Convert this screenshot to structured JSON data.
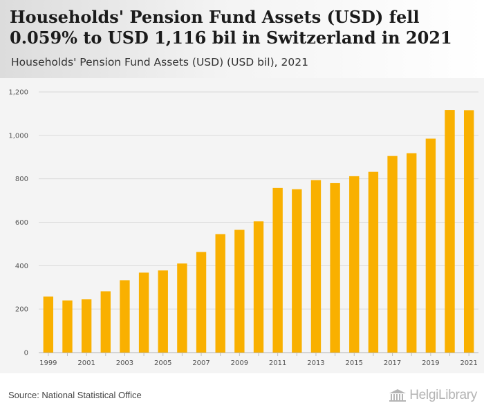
{
  "header": {
    "title": "Households' Pension Fund Assets (USD) fell 0.059% to USD 1,116 bil in Switzerland in 2021",
    "subtitle": "Households' Pension Fund Assets (USD) (USD bil), 2021"
  },
  "footer": {
    "source": "Source: National Statistical Office",
    "logo_text": "HelgiLibrary",
    "logo_icon": "library-building-icon"
  },
  "colors": {
    "bar": "#f9b000",
    "grid": "#d9d9d9",
    "plot_bg": "#f4f4f4"
  },
  "chart_data": {
    "type": "bar",
    "title": "Households' Pension Fund Assets (USD) fell 0.059% to USD 1,116 bil in Switzerland in 2021",
    "subtitle": "Households' Pension Fund Assets (USD) (USD bil), 2021",
    "xlabel": "",
    "ylabel": "",
    "ylim": [
      0,
      1200
    ],
    "yticks": [
      0,
      200,
      400,
      600,
      800,
      1000,
      1200
    ],
    "ytick_labels": [
      "0",
      "200",
      "400",
      "600",
      "800",
      "1,000",
      "1,200"
    ],
    "grid": true,
    "categories": [
      "1999",
      "2000",
      "2001",
      "2002",
      "2003",
      "2004",
      "2005",
      "2006",
      "2007",
      "2008",
      "2009",
      "2010",
      "2011",
      "2012",
      "2013",
      "2014",
      "2015",
      "2016",
      "2017",
      "2018",
      "2019",
      "2020",
      "2021"
    ],
    "xtick_labels": [
      "1999",
      "",
      "2001",
      "",
      "2003",
      "",
      "2005",
      "",
      "2007",
      "",
      "2009",
      "",
      "2011",
      "",
      "2013",
      "",
      "2015",
      "",
      "2017",
      "",
      "2019",
      "",
      "2021"
    ],
    "values": [
      258,
      240,
      245,
      282,
      333,
      368,
      378,
      410,
      463,
      545,
      565,
      604,
      758,
      752,
      794,
      780,
      812,
      832,
      905,
      918,
      985,
      1117,
      1116
    ]
  }
}
